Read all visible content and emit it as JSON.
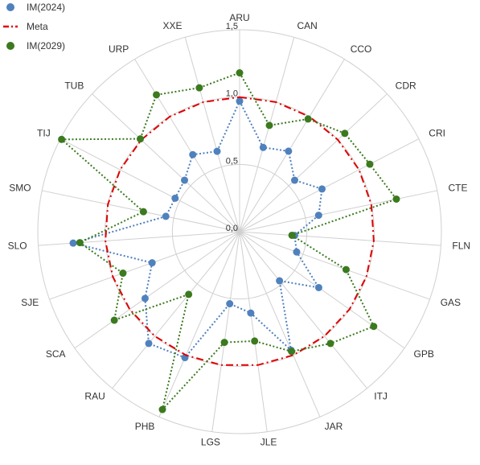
{
  "chart_data": {
    "type": "radar",
    "categories": [
      "ARU",
      "CAN",
      "CCO",
      "CDR",
      "CRI",
      "CTE",
      "FLN",
      "GAS",
      "GPB",
      "ITJ",
      "JAR",
      "JLE",
      "LGS",
      "PHB",
      "RAU",
      "SCA",
      "SJE",
      "SLO",
      "SMO",
      "TIJ",
      "TUB",
      "URP",
      "XXE"
    ],
    "rmin": 0,
    "rmax": 1.5,
    "ticks": [
      0.0,
      0.5,
      1.0,
      1.5
    ],
    "tick_labels": [
      "0,0",
      "0,5",
      "1,0",
      "1,5"
    ],
    "grid": true,
    "legend_position": "top-left",
    "series": [
      {
        "name": "IM(2024)",
        "color": "#4F81BD",
        "style": "dotted",
        "values": [
          0.97,
          0.65,
          0.7,
          0.56,
          0.69,
          0.6,
          0.41,
          0.45,
          0.72,
          0.47,
          0.96,
          0.61,
          0.54,
          1.02,
          1.07,
          0.86,
          0.69,
          1.24,
          0.56,
          0.54,
          0.56,
          0.67,
          0.62
        ]
      },
      {
        "name": "Meta",
        "color": "#E00000",
        "style": "dashdot",
        "values": [
          1,
          1,
          1,
          1,
          1,
          1,
          1,
          1,
          1,
          1,
          1,
          1,
          1,
          1,
          1,
          1,
          1,
          1,
          1,
          1,
          1,
          1,
          1
        ]
      },
      {
        "name": "IM(2029)",
        "color": "#3B7A1E",
        "style": "dotted",
        "values": [
          1.18,
          0.82,
          0.98,
          1.07,
          1.09,
          1.19,
          0.39,
          0.84,
          1.22,
          1.07,
          0.97,
          0.82,
          0.83,
          1.44,
          0.6,
          1.14,
          0.92,
          1.19,
          0.73,
          1.49,
          1.01,
          1.19,
          1.11
        ]
      }
    ]
  }
}
